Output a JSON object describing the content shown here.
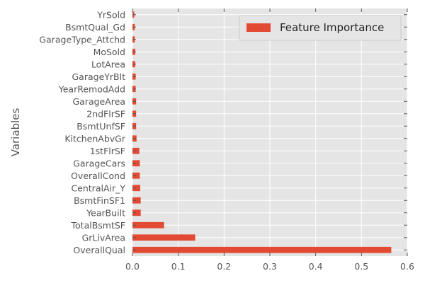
{
  "chart_data": {
    "type": "bar",
    "orientation": "horizontal",
    "title": "",
    "xlabel": "",
    "ylabel": "Variables",
    "xlim": [
      0,
      0.6
    ],
    "xticks": [
      "0.0",
      "0.1",
      "0.2",
      "0.3",
      "0.4",
      "0.5",
      "0.6"
    ],
    "grid": true,
    "legend_position": "top-right",
    "colors": {
      "bar": "#E24A33",
      "background": "#E5E5E5",
      "grid": "#FFFFFF",
      "text": "#555555"
    },
    "categories": [
      "OverallQual",
      "GrLivArea",
      "TotalBsmtSF",
      "YearBuilt",
      "BsmtFinSF1",
      "CentralAir_Y",
      "OverallCond",
      "GarageCars",
      "1stFlrSF",
      "KitchenAbvGr",
      "BsmtUnfSF",
      "2ndFlrSF",
      "GarageArea",
      "YearRemodAdd",
      "GarageYrBlt",
      "LotArea",
      "MoSold",
      "GarageType_Attchd",
      "BsmtQual_Gd",
      "YrSold"
    ],
    "series": [
      {
        "name": "Feature Importance",
        "values": [
          0.565,
          0.137,
          0.069,
          0.018,
          0.018,
          0.017,
          0.016,
          0.016,
          0.015,
          0.009,
          0.008,
          0.008,
          0.008,
          0.007,
          0.007,
          0.006,
          0.006,
          0.005,
          0.005,
          0.004
        ]
      }
    ]
  }
}
